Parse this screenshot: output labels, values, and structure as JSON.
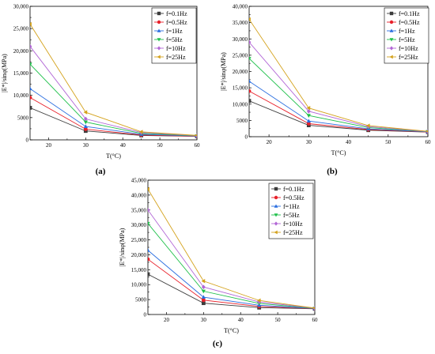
{
  "colors": {
    "f=0.1Hz": "#3c3c3c",
    "f=0.5Hz": "#e8202a",
    "f=1Hz": "#2a6ee0",
    "f=5Hz": "#1ec04a",
    "f=10Hz": "#b266d6",
    "f=25Hz": "#d4a21c"
  },
  "markers": {
    "f=0.1Hz": "square",
    "f=0.5Hz": "circle",
    "f=1Hz": "triangle-up",
    "f=5Hz": "triangle-down",
    "f=10Hz": "diamond",
    "f=25Hz": "triangle-left"
  },
  "chart_data": [
    {
      "type": "line",
      "panel_label": "(a)",
      "xlabel": "T(°C)",
      "ylabel": "|E*|/sinφ(MPa)",
      "xlim": [
        15,
        60
      ],
      "ylim": [
        0,
        30000
      ],
      "xticks": [
        "20",
        "30",
        "40",
        "50",
        "60"
      ],
      "yticks": [
        "0",
        "5000",
        "10,000",
        "15,000",
        "20,000",
        "25,000",
        "30,000"
      ],
      "legend_position": "top-right",
      "x": [
        15,
        30,
        45,
        60
      ],
      "series": [
        {
          "name": "f=0.1Hz",
          "values": [
            7200,
            2000,
            1000,
            800
          ]
        },
        {
          "name": "f=0.5Hz",
          "values": [
            9500,
            2400,
            1100,
            800
          ]
        },
        {
          "name": "f=1Hz",
          "values": [
            11500,
            3000,
            1250,
            850
          ]
        },
        {
          "name": "f=5Hz",
          "values": [
            17000,
            4000,
            1450,
            900
          ]
        },
        {
          "name": "f=10Hz",
          "values": [
            21000,
            4700,
            1650,
            950
          ]
        },
        {
          "name": "f=25Hz",
          "values": [
            26000,
            6200,
            1800,
            1000
          ]
        }
      ]
    },
    {
      "type": "line",
      "panel_label": "(b)",
      "xlabel": "T(°C)",
      "ylabel": "|E*|/sinφ(MPa)",
      "xlim": [
        15,
        60
      ],
      "ylim": [
        0,
        40000
      ],
      "xticks": [
        "20",
        "30",
        "40",
        "50",
        "60"
      ],
      "yticks": [
        "0",
        "5000",
        "10,000",
        "15,000",
        "20,000",
        "25,000",
        "30,000",
        "35,000",
        "40,000"
      ],
      "legend_position": "top-right",
      "x": [
        15,
        30,
        45,
        60
      ],
      "series": [
        {
          "name": "f=0.1Hz",
          "values": [
            11000,
            3500,
            2000,
            1400
          ]
        },
        {
          "name": "f=0.5Hz",
          "values": [
            14000,
            4000,
            2200,
            1450
          ]
        },
        {
          "name": "f=1Hz",
          "values": [
            17000,
            4800,
            2400,
            1500
          ]
        },
        {
          "name": "f=5Hz",
          "values": [
            24000,
            6500,
            2800,
            1550
          ]
        },
        {
          "name": "f=10Hz",
          "values": [
            29000,
            7800,
            3100,
            1600
          ]
        },
        {
          "name": "f=25Hz",
          "values": [
            36000,
            8800,
            3400,
            1650
          ]
        }
      ]
    },
    {
      "type": "line",
      "panel_label": "(c)",
      "xlabel": "T(°C)",
      "ylabel": "|E*|/sinφ(MPa)",
      "xlim": [
        15,
        60
      ],
      "ylim": [
        0,
        45000
      ],
      "xticks": [
        "20",
        "30",
        "40",
        "50",
        "60"
      ],
      "yticks": [
        "0",
        "5000",
        "10,000",
        "15,000",
        "20,000",
        "25,000",
        "30,000",
        "35,000",
        "40,000",
        "45,000"
      ],
      "legend_position": "top-right",
      "x": [
        15,
        30,
        45,
        60
      ],
      "series": [
        {
          "name": "f=0.1Hz",
          "values": [
            13500,
            3800,
            2300,
            1900
          ]
        },
        {
          "name": "f=0.5Hz",
          "values": [
            18500,
            4800,
            2700,
            1950
          ]
        },
        {
          "name": "f=1Hz",
          "values": [
            21500,
            5800,
            3100,
            2000
          ]
        },
        {
          "name": "f=5Hz",
          "values": [
            30500,
            7800,
            3700,
            2050
          ]
        },
        {
          "name": "f=10Hz",
          "values": [
            35000,
            9200,
            4200,
            2100
          ]
        },
        {
          "name": "f=25Hz",
          "values": [
            42000,
            11200,
            4700,
            2150
          ]
        }
      ]
    }
  ]
}
